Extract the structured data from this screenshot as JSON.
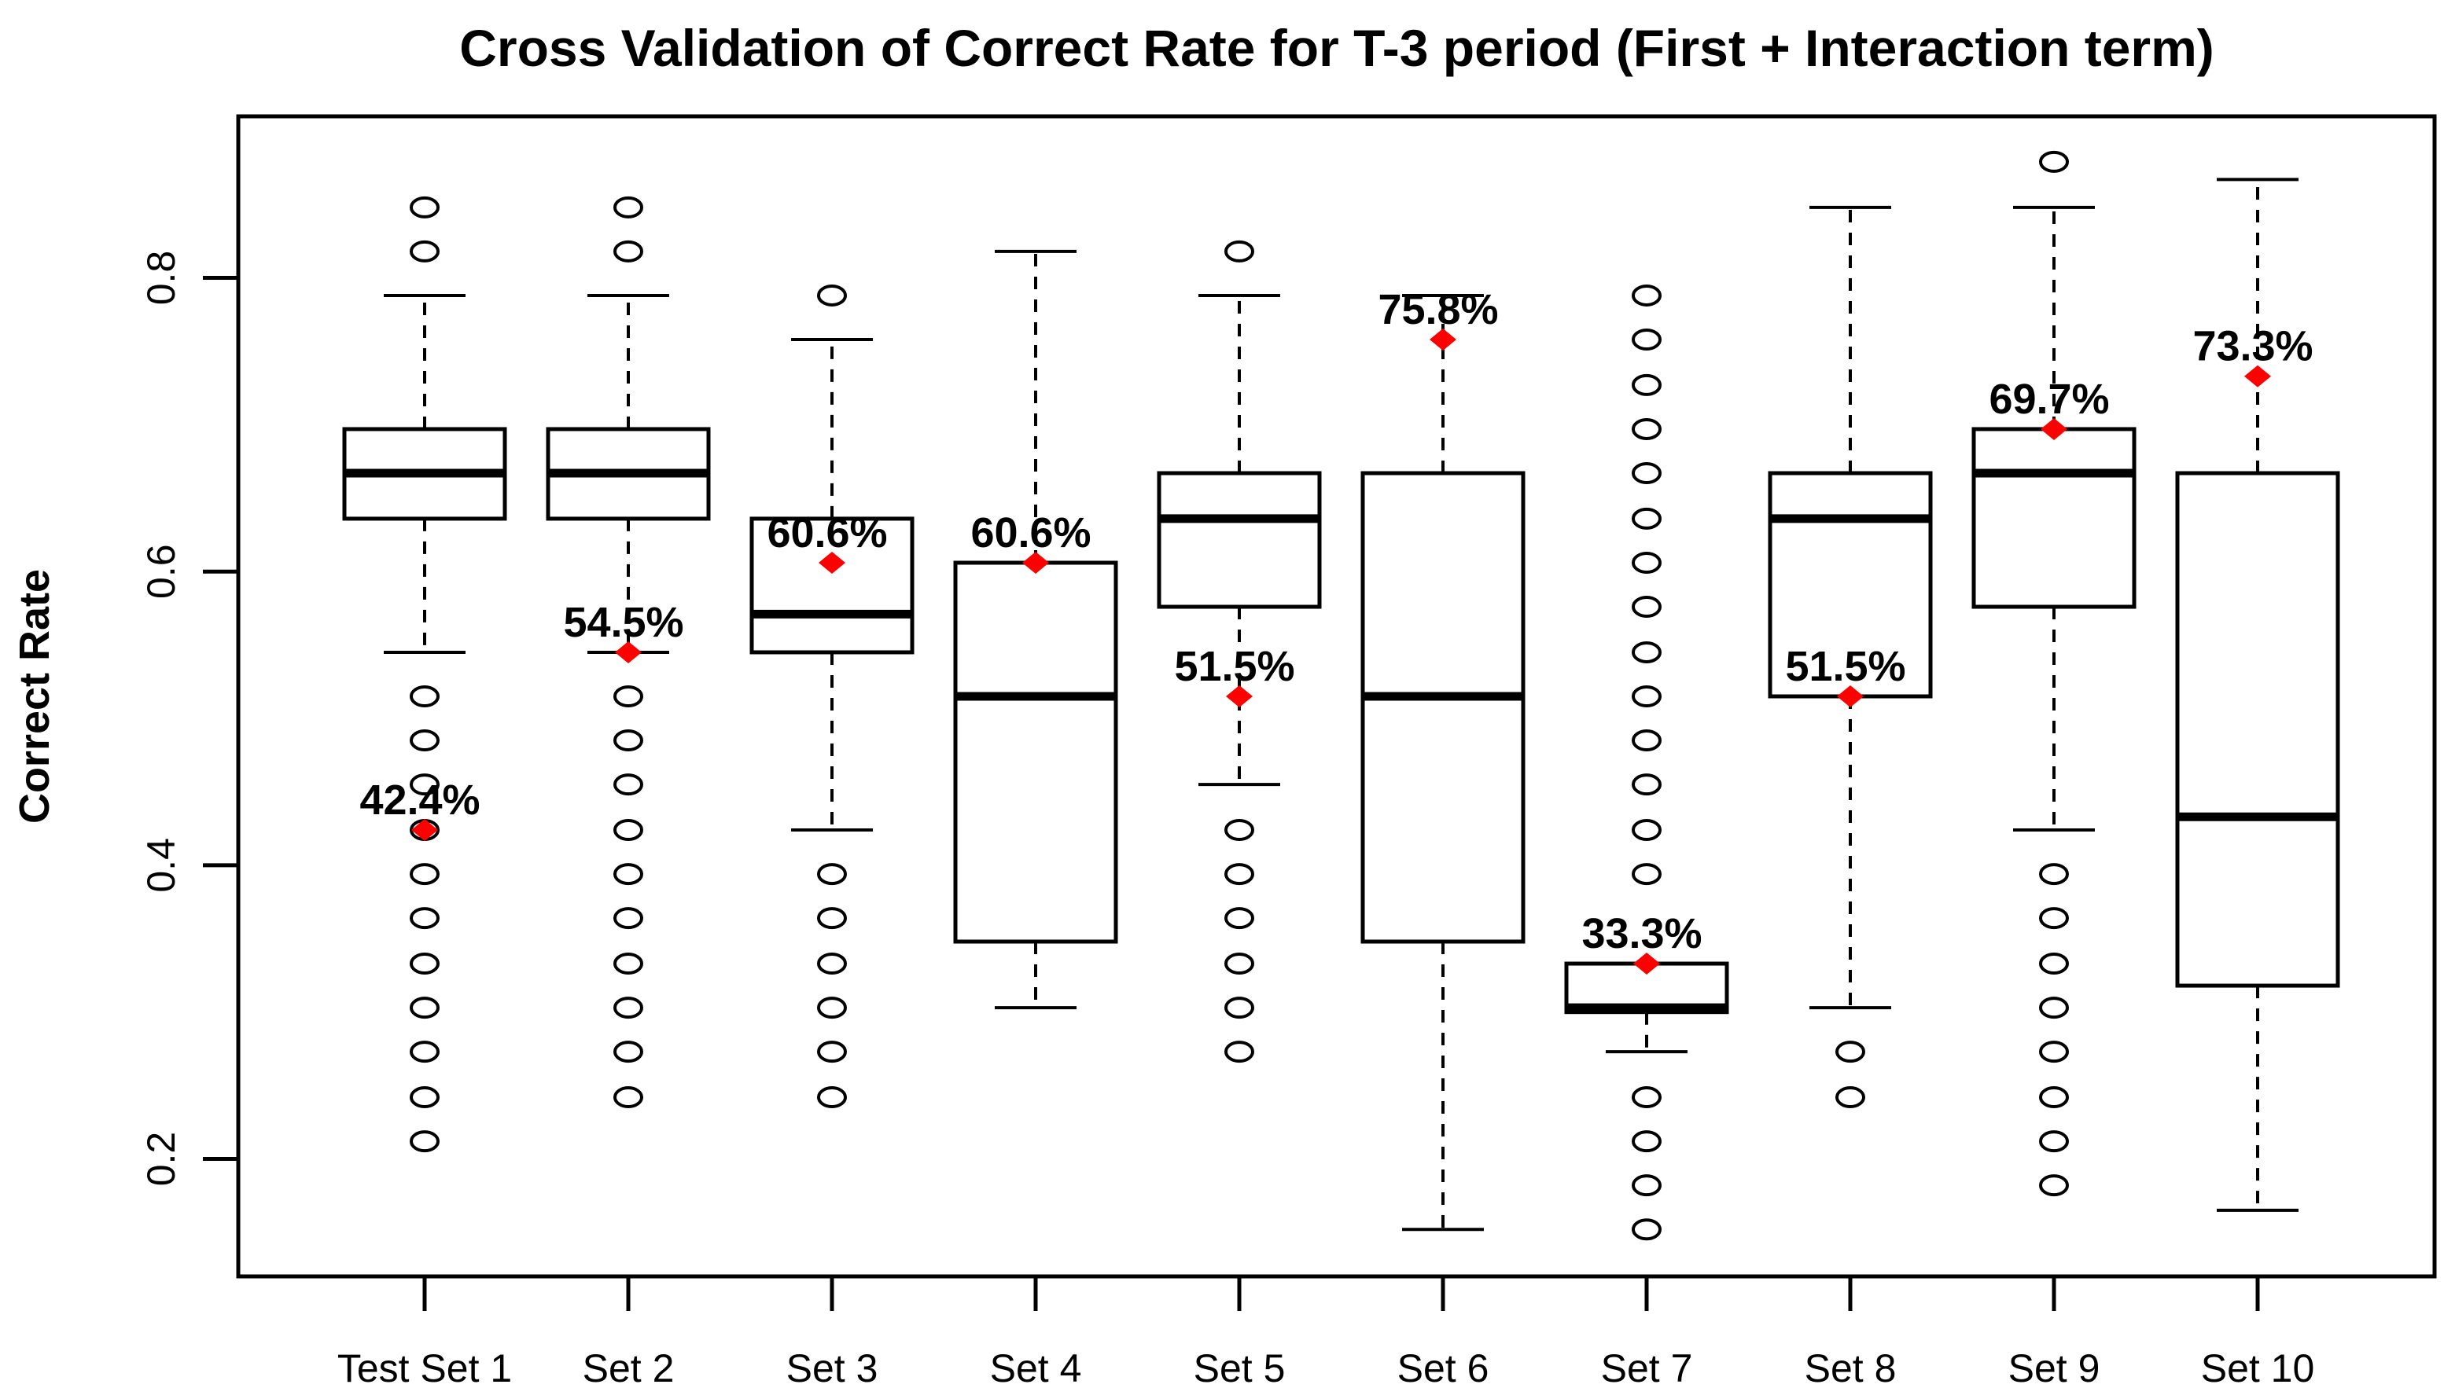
{
  "chart_data": {
    "type": "boxplot",
    "title": "Cross Validation of Correct Rate for T-3 period (First + Interaction term)",
    "xlabel": "",
    "ylabel": "Correct Rate",
    "categories": [
      "Test Set 1",
      "Set 2",
      "Set 3",
      "Set 4",
      "Set 5",
      "Set 6",
      "Set 7",
      "Set 8",
      "Set 9",
      "Set 10"
    ],
    "yticks": [
      0.2,
      0.4,
      0.6,
      0.8
    ],
    "ytick_labels": [
      "0.2",
      "0.4",
      "0.6",
      "0.8"
    ],
    "ylim": [
      0.12,
      0.91
    ],
    "grid": false,
    "legend": "none",
    "colors": {
      "box_stroke": "#000000",
      "box_fill": "#ffffff",
      "whisker": "#000000",
      "outlier": "#000000",
      "test_point": "#ff0000",
      "background": "#ffffff"
    },
    "series": [
      {
        "category": "Test Set 1",
        "whisker_low": 0.545,
        "q1": 0.636,
        "median": 0.667,
        "q3": 0.697,
        "whisker_high": 0.788,
        "outliers_high": [
          0.818,
          0.848
        ],
        "outliers_low": [
          0.515,
          0.485,
          0.455,
          0.424,
          0.394,
          0.364,
          0.333,
          0.303,
          0.273,
          0.242,
          0.212
        ],
        "test_point": {
          "label": "42.4%",
          "value": 0.424
        }
      },
      {
        "category": "Set 2",
        "whisker_low": 0.545,
        "q1": 0.636,
        "median": 0.667,
        "q3": 0.697,
        "whisker_high": 0.788,
        "outliers_high": [
          0.818,
          0.848
        ],
        "outliers_low": [
          0.515,
          0.485,
          0.455,
          0.424,
          0.394,
          0.364,
          0.333,
          0.303,
          0.273,
          0.242
        ],
        "test_point": {
          "label": "54.5%",
          "value": 0.545
        }
      },
      {
        "category": "Set 3",
        "whisker_low": 0.424,
        "q1": 0.545,
        "median": 0.571,
        "q3": 0.636,
        "whisker_high": 0.758,
        "outliers_high": [
          0.788
        ],
        "outliers_low": [
          0.394,
          0.364,
          0.333,
          0.303,
          0.273,
          0.242
        ],
        "test_point": {
          "label": "60.6%",
          "value": 0.606
        }
      },
      {
        "category": "Set 4",
        "whisker_low": 0.303,
        "q1": 0.348,
        "median": 0.515,
        "q3": 0.606,
        "whisker_high": 0.818,
        "outliers_high": [],
        "outliers_low": [],
        "test_point": {
          "label": "60.6%",
          "value": 0.606
        }
      },
      {
        "category": "Set 5",
        "whisker_low": 0.455,
        "q1": 0.576,
        "median": 0.636,
        "q3": 0.667,
        "whisker_high": 0.788,
        "outliers_high": [
          0.818
        ],
        "outliers_low": [
          0.424,
          0.394,
          0.364,
          0.333,
          0.303,
          0.273
        ],
        "test_point": {
          "label": "51.5%",
          "value": 0.515
        }
      },
      {
        "category": "Set 6",
        "whisker_low": 0.152,
        "q1": 0.348,
        "median": 0.515,
        "q3": 0.667,
        "whisker_high": 0.788,
        "outliers_high": [],
        "outliers_low": [],
        "test_point": {
          "label": "75.8%",
          "value": 0.758
        }
      },
      {
        "category": "Set 7",
        "whisker_low": 0.273,
        "q1": 0.3,
        "median": 0.303,
        "q3": 0.333,
        "whisker_high": 0.333,
        "outliers_high": [
          0.394,
          0.424,
          0.455,
          0.485,
          0.515,
          0.545,
          0.576,
          0.606,
          0.636,
          0.667,
          0.697,
          0.727,
          0.758,
          0.788
        ],
        "outliers_low": [
          0.242,
          0.212,
          0.182,
          0.152
        ],
        "test_point": {
          "label": "33.3%",
          "value": 0.333
        }
      },
      {
        "category": "Set 8",
        "whisker_low": 0.303,
        "q1": 0.515,
        "median": 0.636,
        "q3": 0.667,
        "whisker_high": 0.848,
        "outliers_high": [],
        "outliers_low": [
          0.273,
          0.242
        ],
        "test_point": {
          "label": "51.5%",
          "value": 0.515
        }
      },
      {
        "category": "Set 9",
        "whisker_low": 0.424,
        "q1": 0.576,
        "median": 0.667,
        "q3": 0.697,
        "whisker_high": 0.848,
        "outliers_high": [
          0.879
        ],
        "outliers_low": [
          0.394,
          0.364,
          0.333,
          0.303,
          0.273,
          0.242,
          0.212,
          0.182
        ],
        "test_point": {
          "label": "69.7%",
          "value": 0.697
        }
      },
      {
        "category": "Set 10",
        "whisker_low": 0.165,
        "q1": 0.318,
        "median": 0.433,
        "q3": 0.667,
        "whisker_high": 0.867,
        "outliers_high": [],
        "outliers_low": [],
        "test_point": {
          "label": "73.3%",
          "value": 0.733
        }
      }
    ]
  }
}
